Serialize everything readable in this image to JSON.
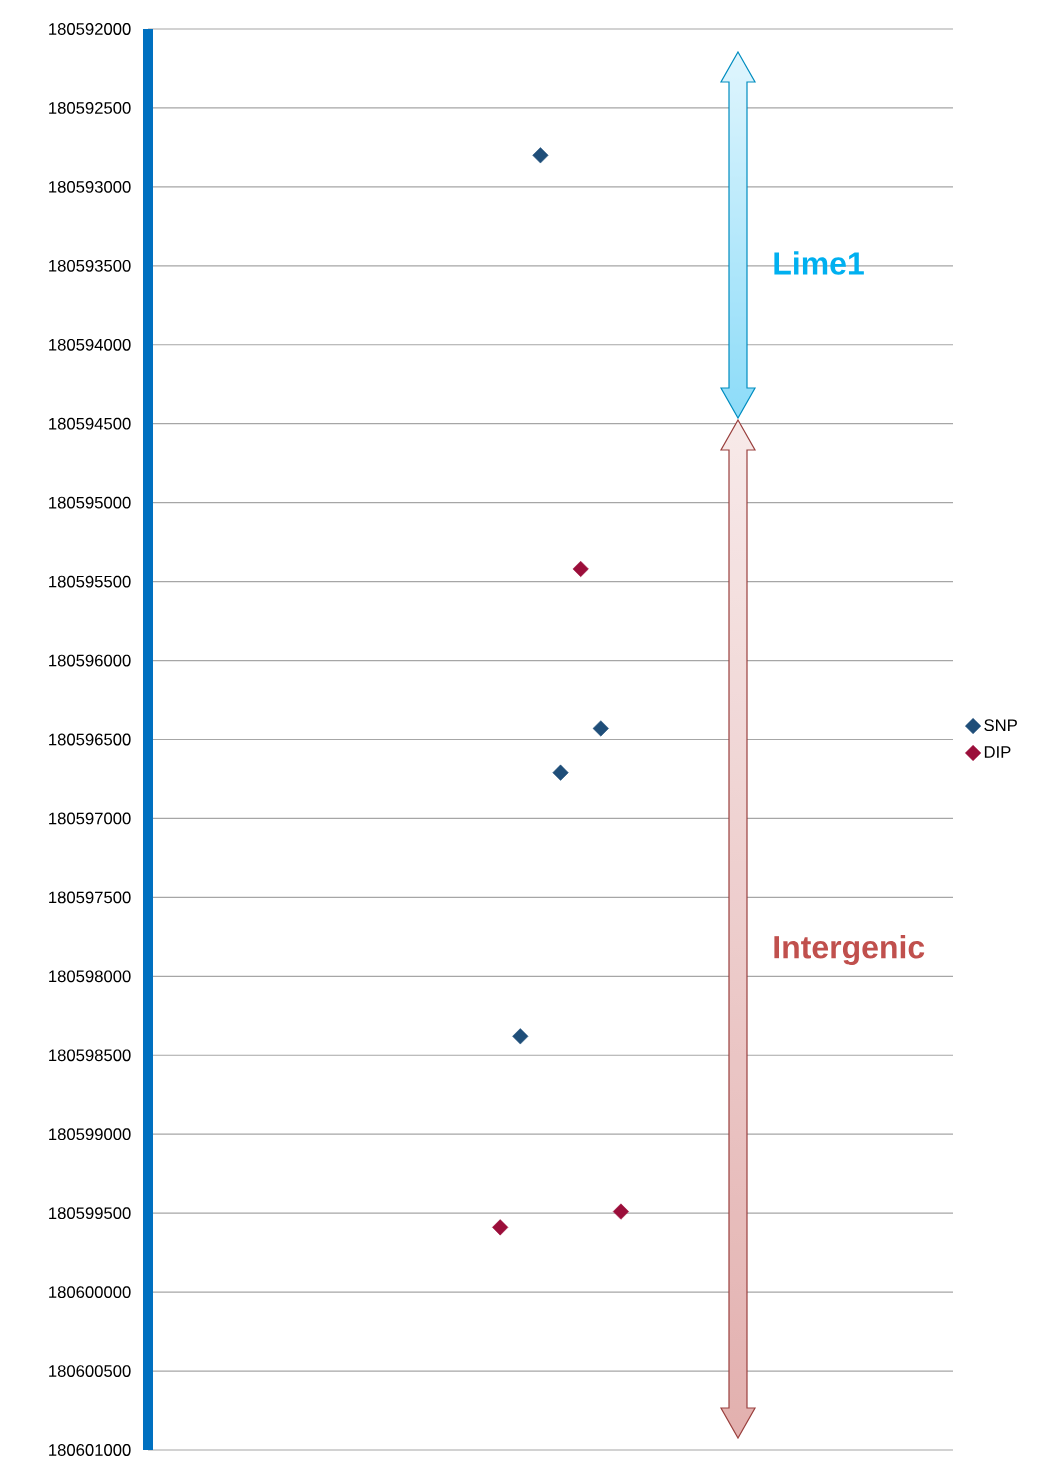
{
  "chart_data": {
    "type": "scatter",
    "categories": [
      null,
      null,
      null,
      null,
      null,
      null,
      null,
      null,
      null,
      null,
      null,
      null,
      null,
      null,
      null,
      null,
      null,
      null,
      null,
      null,
      null,
      null,
      null,
      null,
      null,
      null,
      null,
      null,
      null,
      null,
      null,
      null,
      null,
      null,
      null,
      null,
      null,
      null,
      null,
      null
    ],
    "series": [
      {
        "name": "SNP",
        "color": "#1f4e79",
        "values": [
          null,
          null,
          null,
          null,
          null,
          null,
          null,
          null,
          null,
          null,
          null,
          null,
          null,
          null,
          null,
          null,
          null,
          null,
          180598380,
          180592800,
          180596710,
          null,
          180596430,
          null,
          null,
          null,
          null,
          null,
          null,
          null,
          null,
          null,
          null,
          null,
          null,
          null,
          null,
          null,
          null,
          null
        ]
      },
      {
        "name": "DIP",
        "color": "#9b0e3a",
        "values": [
          null,
          null,
          null,
          null,
          null,
          null,
          null,
          null,
          null,
          null,
          null,
          null,
          null,
          null,
          null,
          null,
          null,
          180599590,
          null,
          null,
          null,
          180595420,
          null,
          180599490,
          null,
          null,
          null,
          null,
          null,
          null,
          null,
          null,
          null,
          null,
          null,
          null,
          null,
          null,
          null,
          null
        ]
      }
    ],
    "ylim": [
      180601000,
      180592000
    ],
    "yticks": [
      180592000,
      180592500,
      180593000,
      180593500,
      180594000,
      180594500,
      180595000,
      180595500,
      180596000,
      180596500,
      180597000,
      180597500,
      180598000,
      180598500,
      180599000,
      180599500,
      180600000,
      180600500,
      180601000
    ],
    "tick_labels": "y",
    "grid": "y",
    "legend": "right",
    "marker": "diamond",
    "annotations": [
      "Lime1",
      "Intergenic"
    ]
  }
}
